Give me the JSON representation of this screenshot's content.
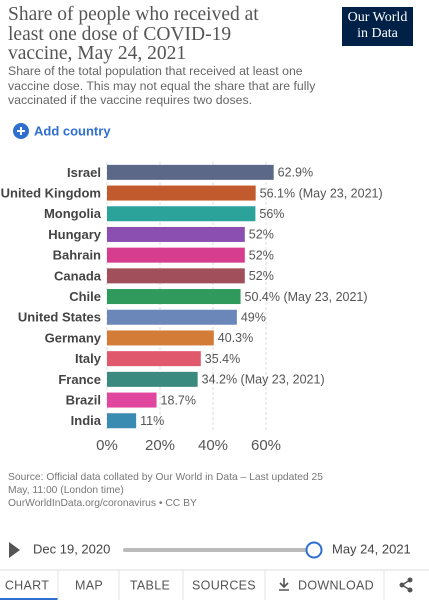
{
  "header": {
    "title": "Share of people who received at least one dose of COVID-19 vaccine, May 24, 2021",
    "subtitle": "Share of the total population that received at least one vaccine dose. This may not equal the share that are fully vaccinated if the vaccine requires two doses.",
    "logo": [
      "Our World",
      "in Data"
    ]
  },
  "add_country": "Add country",
  "chart_data": {
    "type": "bar",
    "orientation": "horizontal",
    "categories": [
      "Israel",
      "United Kingdom",
      "Mongolia",
      "Hungary",
      "Bahrain",
      "Canada",
      "Chile",
      "United States",
      "Germany",
      "Italy",
      "France",
      "Brazil",
      "India"
    ],
    "values": [
      62.9,
      56.1,
      56,
      52,
      52,
      52,
      50.4,
      49,
      40.3,
      35.4,
      34.2,
      18.7,
      11
    ],
    "value_labels": [
      "62.9%",
      "56.1% (May 23, 2021)",
      "56%",
      "52%",
      "52%",
      "52%",
      "50.4% (May 23, 2021)",
      "49%",
      "40.3%",
      "35.4%",
      "34.2% (May 23, 2021)",
      "18.7%",
      "11%"
    ],
    "colors": [
      "#5b6887",
      "#c15a2c",
      "#2ba39a",
      "#8a4fb0",
      "#d63d8e",
      "#a24f5c",
      "#2f9a5c",
      "#6b86b9",
      "#d27c38",
      "#e0586c",
      "#3a8a7f",
      "#e0469e",
      "#3a8bb1"
    ],
    "xlim": [
      0,
      60
    ],
    "xticks": [
      {
        "value": 0,
        "label": "0%"
      },
      {
        "value": 20,
        "label": "20%"
      },
      {
        "value": 40,
        "label": "40%"
      },
      {
        "value": 60,
        "label": "60%"
      }
    ],
    "grid": true
  },
  "source": [
    "Source: Official data collated by Our World in Data – Last updated 25 May, 11:00 (London time)",
    "OurWorldInData.org/coronavirus • CC BY"
  ],
  "timeline": {
    "start": "Dec 19, 2020",
    "end": "May 24, 2021"
  },
  "tabs": [
    "CHART",
    "MAP",
    "TABLE",
    "SOURCES",
    "DOWNLOAD"
  ]
}
